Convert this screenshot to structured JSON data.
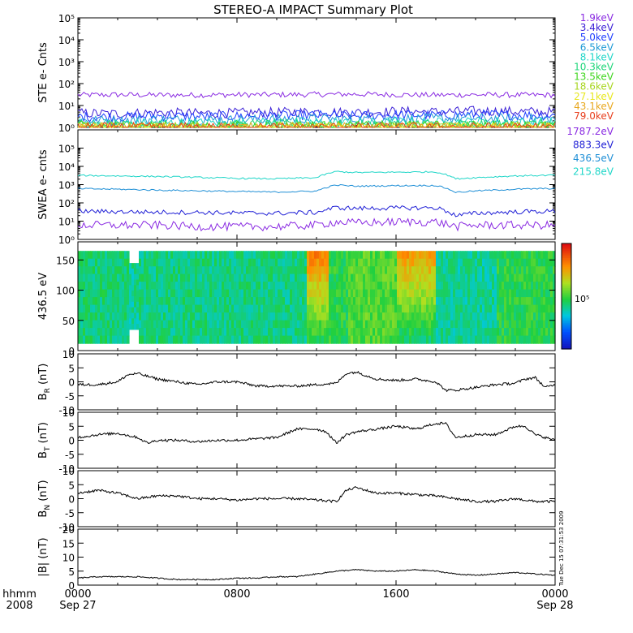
{
  "title": "STEREO-A IMPACT Summary Plot",
  "time_axis": {
    "unit_label": "hhmm",
    "year_label": "2008",
    "ticks": [
      {
        "hours": 0,
        "label": "0000",
        "sublabel": "Sep 27"
      },
      {
        "hours": 8,
        "label": "0800",
        "sublabel": ""
      },
      {
        "hours": 16,
        "label": "1600",
        "sublabel": ""
      },
      {
        "hours": 24,
        "label": "0000",
        "sublabel": "Sep 28"
      }
    ]
  },
  "side_stamp": "Tue Dec 15 07:31:53 2009",
  "panels": {
    "ste": {
      "ylabel": "STE e- Cnts",
      "tick_labels": [
        "10⁰",
        "10¹",
        "10²",
        "10³",
        "10⁴",
        "10⁵"
      ],
      "legend": [
        {
          "label": "1.9keV",
          "color": "#8a2be2"
        },
        {
          "label": "3.4keV",
          "color": "#3a1fd6"
        },
        {
          "label": "5.0keV",
          "color": "#1f3fff"
        },
        {
          "label": "6.5keV",
          "color": "#1f9bd6"
        },
        {
          "label": "8.1keV",
          "color": "#1fd6c8"
        },
        {
          "label": "10.3keV",
          "color": "#1fd67a"
        },
        {
          "label": "13.5keV",
          "color": "#3fd61f"
        },
        {
          "label": "18.6keV",
          "color": "#a8d61f"
        },
        {
          "label": "27.1keV",
          "color": "#e8e81f"
        },
        {
          "label": "43.1keV",
          "color": "#e8a81f"
        },
        {
          "label": "79.0keV",
          "color": "#e8401f"
        }
      ]
    },
    "swea": {
      "ylabel": "SWEA e- cnts",
      "tick_labels": [
        "10⁰",
        "10¹",
        "10²",
        "10³",
        "10⁴",
        "10⁵"
      ],
      "legend": [
        {
          "label": "1787.2eV",
          "color": "#8a2be2"
        },
        {
          "label": "883.3eV",
          "color": "#1f1fd6"
        },
        {
          "label": "436.5eV",
          "color": "#1f8fd6"
        },
        {
          "label": "215.8eV",
          "color": "#1fd6c8"
        }
      ]
    },
    "pad": {
      "ylabel": "436.5 eV",
      "tick_labels": [
        "0",
        "50",
        "100",
        "150"
      ],
      "colorbar_label": "10⁵"
    },
    "br": {
      "ylabel": "BR (nT)",
      "ylabel_main": "B",
      "ylabel_sub": "R",
      "ylabel_unit": "(nT)",
      "tick_labels": [
        "-10",
        "-5",
        "0",
        "5",
        "10"
      ]
    },
    "bt": {
      "ylabel": "BT (nT)",
      "ylabel_main": "B",
      "ylabel_sub": "T",
      "ylabel_unit": "(nT)",
      "tick_labels": [
        "-10",
        "-5",
        "0",
        "5",
        "10"
      ]
    },
    "bn": {
      "ylabel": "BN (nT)",
      "ylabel_main": "B",
      "ylabel_sub": "N",
      "ylabel_unit": "(nT)",
      "tick_labels": [
        "-10",
        "-5",
        "0",
        "5",
        "10"
      ]
    },
    "bmag": {
      "ylabel": "|B| (nT)",
      "tick_labels": [
        "0",
        "5",
        "10",
        "15",
        "20"
      ]
    }
  },
  "chart_data": [
    {
      "type": "line",
      "title": "STEREO-A IMPACT Summary Plot",
      "xlabel": "hhmm",
      "ylabel": "STE e- Cnts",
      "x_range_hours": [
        0,
        24
      ],
      "y_scale": "log",
      "ylim": [
        1,
        100000
      ],
      "x": [
        0,
        2,
        4,
        6,
        8,
        10,
        12,
        14,
        16,
        18,
        20,
        22,
        24
      ],
      "series": [
        {
          "name": "1.9keV",
          "values": [
            30,
            31,
            30,
            30,
            31,
            31,
            32,
            33,
            31,
            30,
            31,
            30,
            30
          ]
        },
        {
          "name": "3.4keV",
          "values": [
            4.5,
            4.2,
            4.8,
            4.4,
            4.6,
            4.9,
            5.2,
            4.8,
            5.4,
            5.1,
            5.6,
            5.3,
            5.0
          ]
        },
        {
          "name": "5.0keV",
          "values": [
            3.2,
            3.0,
            3.4,
            3.1,
            3.3,
            3.5,
            3.6,
            3.3,
            3.8,
            3.6,
            3.9,
            3.7,
            3.5
          ]
        },
        {
          "name": "6.5keV",
          "values": [
            2.2,
            2.1,
            2.3,
            2.2,
            2.2,
            2.4,
            2.5,
            2.3,
            2.6,
            2.5,
            2.6,
            2.5,
            2.4
          ]
        },
        {
          "name": "8.1keV",
          "values": [
            1.6,
            1.5,
            1.6,
            1.6,
            1.6,
            1.7,
            1.7,
            1.6,
            1.8,
            1.7,
            1.8,
            1.7,
            1.7
          ]
        },
        {
          "name": "10.3keV",
          "values": [
            1.3,
            1.3,
            1.3,
            1.3,
            1.3,
            1.4,
            1.4,
            1.3,
            1.4,
            1.4,
            1.4,
            1.4,
            1.4
          ]
        },
        {
          "name": "13.5keV",
          "values": [
            1.15,
            1.15,
            1.15,
            1.15,
            1.15,
            1.2,
            1.2,
            1.15,
            1.2,
            1.2,
            1.2,
            1.2,
            1.2
          ]
        },
        {
          "name": "18.6keV",
          "values": [
            1.05,
            1.05,
            1.05,
            1.05,
            1.05,
            1.08,
            1.08,
            1.05,
            1.08,
            1.08,
            1.08,
            1.08,
            1.08
          ]
        },
        {
          "name": "27.1keV",
          "values": [
            1,
            1,
            1,
            1,
            1,
            1,
            1,
            1,
            1,
            1,
            1,
            1,
            1
          ]
        },
        {
          "name": "43.1keV",
          "values": [
            1,
            1,
            1,
            1,
            1,
            1,
            1,
            1,
            1,
            1,
            1,
            1,
            1
          ]
        },
        {
          "name": "79.0keV",
          "values": [
            1,
            1,
            1,
            1,
            1,
            1,
            1,
            1,
            1,
            1,
            1,
            1,
            1
          ]
        }
      ]
    },
    {
      "type": "line",
      "ylabel": "SWEA e- cnts",
      "x_range_hours": [
        0,
        24
      ],
      "y_scale": "log",
      "ylim": [
        1,
        1000000
      ],
      "x": [
        0,
        2,
        4,
        6,
        8,
        10,
        12,
        13,
        14,
        16,
        18,
        19,
        20,
        22,
        24
      ],
      "series": [
        {
          "name": "215.8eV",
          "values": [
            3200,
            3000,
            2800,
            2500,
            2200,
            2100,
            2400,
            5200,
            4600,
            4800,
            5000,
            2100,
            2400,
            3000,
            3300
          ]
        },
        {
          "name": "436.5eV",
          "values": [
            600,
            560,
            500,
            460,
            420,
            390,
            440,
            950,
            820,
            880,
            900,
            380,
            450,
            560,
            620
          ]
        },
        {
          "name": "883.3eV",
          "values": [
            35,
            33,
            31,
            30,
            28,
            27,
            30,
            55,
            50,
            52,
            54,
            20,
            27,
            32,
            35
          ]
        },
        {
          "name": "1787.2eV",
          "values": [
            6,
            6,
            6,
            5,
            5,
            5,
            6,
            9,
            8,
            9,
            9,
            5,
            6,
            6,
            6
          ]
        }
      ]
    },
    {
      "type": "heatmap",
      "ylabel": "436.5 eV",
      "x_range_hours": [
        0,
        24
      ],
      "ylim": [
        0,
        180
      ],
      "colorbar_tick": "10⁵",
      "intensity_profile": [
        {
          "start_h": 0.0,
          "end_h": 2.5,
          "level": 0.45
        },
        {
          "start_h": 2.5,
          "end_h": 3.0,
          "level": 0.42
        },
        {
          "start_h": 3.0,
          "end_h": 11.5,
          "level": 0.44
        },
        {
          "start_h": 11.5,
          "end_h": 12.5,
          "level": 0.82
        },
        {
          "start_h": 12.5,
          "end_h": 13.5,
          "level": 0.5
        },
        {
          "start_h": 13.5,
          "end_h": 16.0,
          "level": 0.55
        },
        {
          "start_h": 16.0,
          "end_h": 18.0,
          "level": 0.78
        },
        {
          "start_h": 18.0,
          "end_h": 21.0,
          "level": 0.42
        },
        {
          "start_h": 21.0,
          "end_h": 24.0,
          "level": 0.5
        }
      ]
    },
    {
      "type": "line",
      "ylabel": "BR (nT)",
      "ylim": [
        -10,
        10
      ],
      "x": [
        0,
        1,
        2,
        2.5,
        3,
        3.5,
        4,
        5,
        6,
        7,
        8,
        9,
        10,
        11,
        12,
        13,
        13.5,
        14,
        15,
        16,
        17,
        18,
        18.5,
        19,
        20,
        21,
        22,
        22.5,
        23,
        23.5,
        24
      ],
      "values": [
        -1,
        -1,
        0,
        2.5,
        3,
        2,
        1,
        0,
        -1,
        0,
        0,
        -1.5,
        -1.5,
        -1.5,
        -1,
        -0.5,
        3,
        3.5,
        1,
        0.5,
        1,
        0,
        -3,
        -3,
        -2,
        -1,
        -0.5,
        1,
        1.5,
        -2,
        -1
      ]
    },
    {
      "type": "line",
      "ylabel": "BT (nT)",
      "ylim": [
        -10,
        10
      ],
      "x": [
        0,
        1,
        2,
        3,
        3.5,
        4,
        5,
        6,
        7,
        8,
        9,
        10,
        11,
        12,
        12.5,
        13,
        13.5,
        14,
        15,
        16,
        17,
        18,
        18.5,
        19,
        20,
        21,
        22,
        22.5,
        23,
        24
      ],
      "values": [
        1,
        2,
        2.5,
        1,
        -1,
        0,
        0,
        -0.5,
        0,
        0,
        0.5,
        1,
        4,
        4,
        3,
        -1,
        2,
        3,
        4,
        5,
        4,
        6,
        6,
        1,
        2,
        2,
        5,
        5,
        2,
        0
      ]
    },
    {
      "type": "line",
      "ylabel": "BN (nT)",
      "ylim": [
        -10,
        10
      ],
      "x": [
        0,
        1,
        2,
        3,
        4,
        5,
        6,
        7,
        8,
        9,
        10,
        11,
        12,
        13,
        13.5,
        14,
        15,
        16,
        17,
        18,
        19,
        20,
        21,
        22,
        23,
        24
      ],
      "values": [
        2,
        3,
        2,
        0,
        1,
        1,
        0,
        0,
        -0.5,
        0,
        0,
        0,
        -0.5,
        -1,
        3,
        4,
        2,
        2,
        1.5,
        1,
        0,
        -1,
        -1,
        0,
        -1,
        -1
      ]
    },
    {
      "type": "line",
      "ylabel": "|B| (nT)",
      "ylim": [
        0,
        20
      ],
      "x": [
        0,
        1,
        2,
        3,
        4,
        5,
        6,
        7,
        8,
        9,
        10,
        11,
        12,
        13,
        14,
        15,
        16,
        17,
        18,
        19,
        20,
        21,
        22,
        23,
        24
      ],
      "values": [
        2.5,
        3,
        3,
        3,
        2.5,
        2,
        2,
        2,
        2.5,
        2.5,
        3,
        3,
        4,
        5,
        5.5,
        5,
        5,
        5.5,
        5,
        4,
        3.5,
        4,
        4.5,
        4,
        3.5
      ]
    }
  ]
}
